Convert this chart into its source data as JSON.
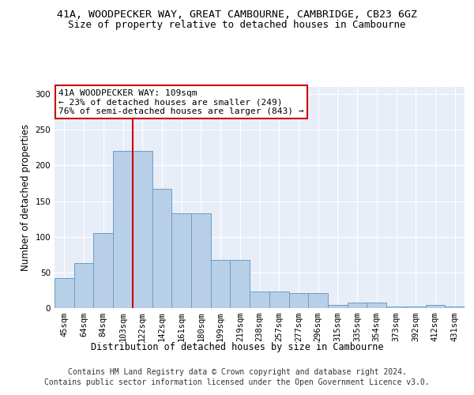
{
  "title": "41A, WOODPECKER WAY, GREAT CAMBOURNE, CAMBRIDGE, CB23 6GZ",
  "subtitle": "Size of property relative to detached houses in Cambourne",
  "xlabel": "Distribution of detached houses by size in Cambourne",
  "ylabel": "Number of detached properties",
  "categories": [
    "45sqm",
    "64sqm",
    "84sqm",
    "103sqm",
    "122sqm",
    "142sqm",
    "161sqm",
    "180sqm",
    "199sqm",
    "219sqm",
    "238sqm",
    "257sqm",
    "277sqm",
    "296sqm",
    "315sqm",
    "335sqm",
    "354sqm",
    "373sqm",
    "392sqm",
    "412sqm",
    "431sqm"
  ],
  "values": [
    42,
    63,
    105,
    220,
    220,
    167,
    133,
    133,
    68,
    68,
    23,
    23,
    21,
    21,
    4,
    8,
    8,
    2,
    2,
    4,
    2
  ],
  "bar_color": "#b8cfe8",
  "bar_edge_color": "#6a9ec5",
  "vline_color": "#cc0000",
  "vline_x_index": 3.5,
  "annotation_text": "41A WOODPECKER WAY: 109sqm\n← 23% of detached houses are smaller (249)\n76% of semi-detached houses are larger (843) →",
  "annotation_box_color": "#ffffff",
  "annotation_box_edge": "#cc0000",
  "ylim": [
    0,
    310
  ],
  "yticks": [
    0,
    50,
    100,
    150,
    200,
    250,
    300
  ],
  "footer1": "Contains HM Land Registry data © Crown copyright and database right 2024.",
  "footer2": "Contains public sector information licensed under the Open Government Licence v3.0.",
  "bg_color": "#e8eef8",
  "fig_bg_color": "#ffffff",
  "title_fontsize": 9.5,
  "subtitle_fontsize": 9,
  "tick_fontsize": 7.5,
  "label_fontsize": 8.5,
  "footer_fontsize": 7
}
